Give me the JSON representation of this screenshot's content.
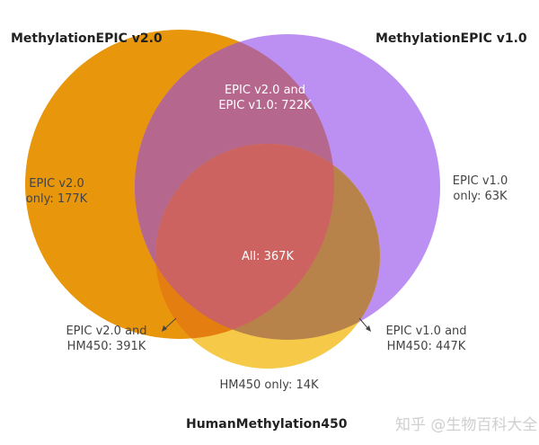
{
  "sets": {
    "v2": {
      "label": "MethylationEPIC v2.0",
      "color": "#E8960C"
    },
    "v1": {
      "label": "MethylationEPIC v1.0",
      "color": "#BC8FF2"
    },
    "hm450": {
      "label": "HumanMethylation450",
      "color": "#F7C948"
    }
  },
  "regions": {
    "v2_v1": {
      "line1": "EPIC v2.0 and",
      "line2": "EPIC v1.0: 722K",
      "color": "#B5678E"
    },
    "v2_only": {
      "line1": "EPIC v2.0",
      "line2": "only: 177K"
    },
    "v1_only": {
      "line1": "EPIC v1.0",
      "line2": "only: 63K"
    },
    "all": {
      "text": "All: 367K",
      "color": "#CC6360"
    },
    "v2_hm450": {
      "line1": "EPIC v2.0 and",
      "line2": "HM450: 391K",
      "color": "#E57E10"
    },
    "v1_hm450": {
      "line1": "EPIC v1.0 and",
      "line2": "HM450: 447K",
      "color": "#B8834A"
    },
    "hm450_only": {
      "text": "HM450 only: 14K"
    }
  },
  "watermark": "知乎 @生物百科大全"
}
